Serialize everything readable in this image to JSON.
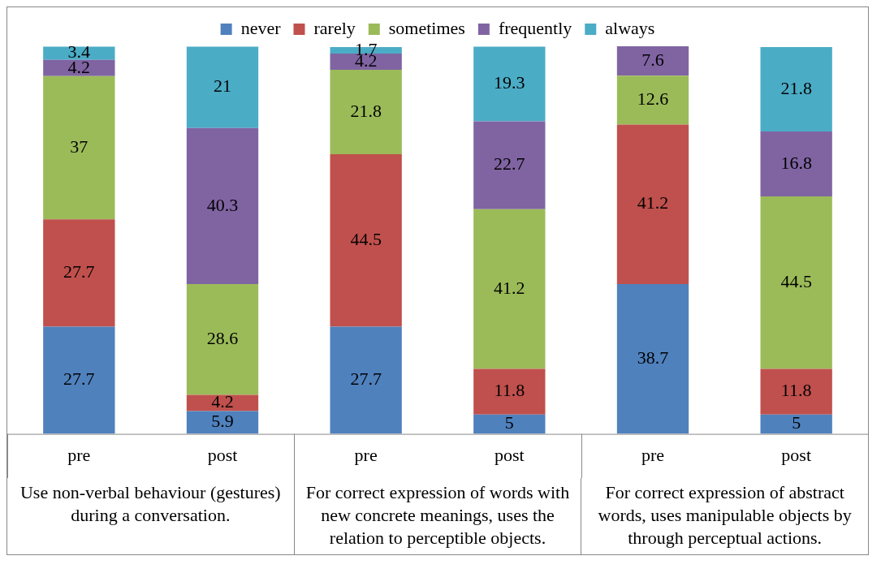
{
  "chart_data": {
    "type": "bar",
    "stacked": true,
    "data_labels": true,
    "legend": "top",
    "grid": false,
    "categories": [
      "pre",
      "post",
      "pre",
      "post",
      "pre",
      "post"
    ],
    "series": [
      {
        "name": "never",
        "color": "#4f81bd",
        "values": [
          27.7,
          5.9,
          27.7,
          5,
          38.7,
          5
        ]
      },
      {
        "name": "rarely",
        "color": "#c0504d",
        "values": [
          27.7,
          4.2,
          44.5,
          11.8,
          41.2,
          11.8
        ]
      },
      {
        "name": "sometimes",
        "color": "#9bbb59",
        "values": [
          37,
          28.6,
          21.8,
          41.2,
          12.6,
          44.5
        ]
      },
      {
        "name": "frequently",
        "color": "#8064a2",
        "values": [
          4.2,
          40.3,
          4.2,
          22.7,
          7.6,
          16.8
        ]
      },
      {
        "name": "always",
        "color": "#4bacc6",
        "values": [
          3.4,
          21,
          1.7,
          19.3,
          null,
          21.8
        ]
      }
    ],
    "annotations": [
      "Use non-verbal behaviour (gestures) during a conversation.",
      "For correct expression of words with new concrete meanings, uses the relation to perceptible objects.",
      "For correct expression of abstract words, uses manipulable objects by through perceptual actions."
    ]
  }
}
